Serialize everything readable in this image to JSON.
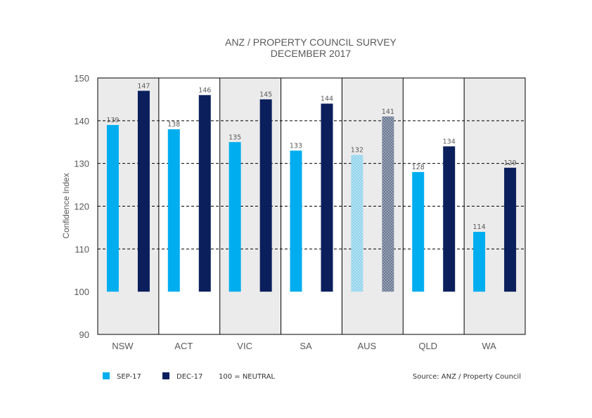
{
  "chart_data": {
    "type": "bar",
    "title": [
      "ANZ / PROPERTY COUNCIL SURVEY",
      "DECEMBER 2017"
    ],
    "ylabel": "Confidence Index",
    "xlabel": "",
    "ylim": [
      90,
      150
    ],
    "yticks": [
      90,
      100,
      110,
      120,
      130,
      140,
      150
    ],
    "baseline": 100,
    "grid": "dashed horizontal",
    "categories": [
      "NSW",
      "ACT",
      "VIC",
      "SA",
      "AUS",
      "QLD",
      "WA"
    ],
    "highlight_category": "AUS",
    "series": [
      {
        "name": "SEP-17",
        "color": "#00AEEF",
        "values": [
          139,
          138,
          135,
          133,
          132,
          128,
          114
        ]
      },
      {
        "name": "DEC-17",
        "color": "#0B1F5C",
        "values": [
          147,
          146,
          145,
          144,
          141,
          134,
          129
        ]
      }
    ],
    "value_labels": [
      [
        "139",
        "138",
        "135",
        "133",
        "132",
        "128",
        "114"
      ],
      [
        "147",
        "146",
        "145",
        "144",
        "141",
        "134",
        "129"
      ]
    ],
    "band_colors": [
      "#EBEBEB",
      "#FFFFFF"
    ],
    "legend_placement": "bottom-left"
  },
  "legend": {
    "items": [
      {
        "label": "SEP-17",
        "color": "#00AEEF"
      },
      {
        "label": "DEC-17",
        "color": "#0B1F5C"
      }
    ],
    "note": "100 = NEUTRAL"
  },
  "source": "Source: ANZ / Property Council"
}
